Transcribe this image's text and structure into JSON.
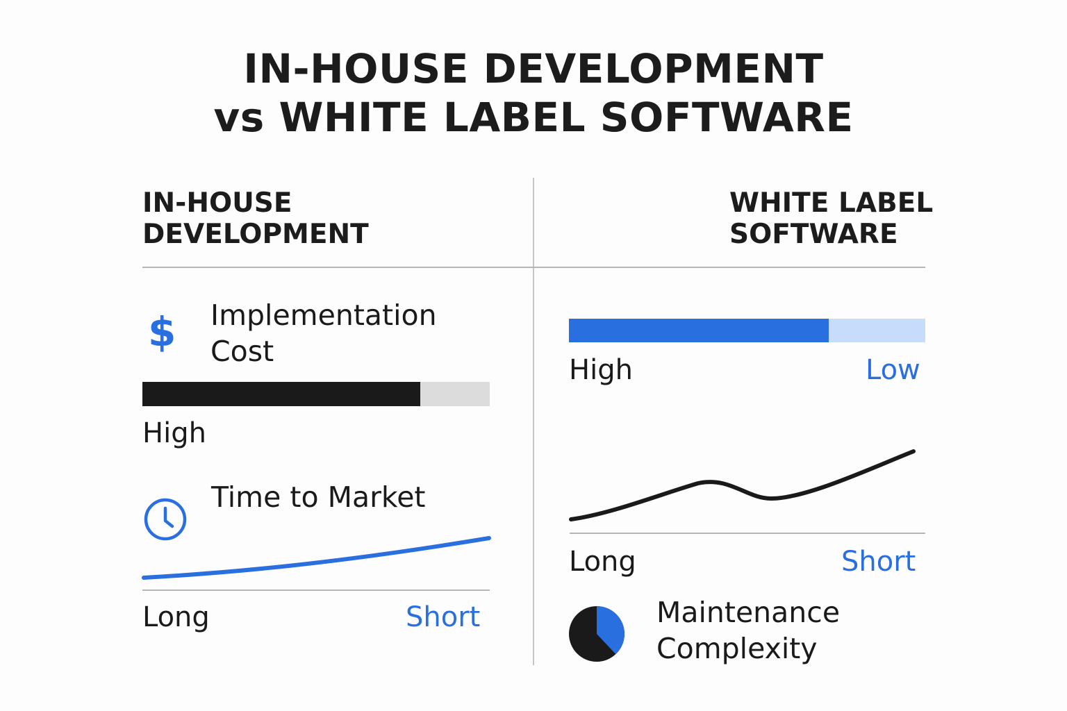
{
  "title": {
    "line1": "IN-HOUSE DEVELOPMENT",
    "line2": "vs WHITE LABEL SOFTWARE"
  },
  "colors": {
    "accent_blue": "#2a6fe0",
    "light_blue": "#c7dcfb",
    "dark": "#1a1a1a",
    "light_gray": "#dcdcdc"
  },
  "left": {
    "heading_line1": "IN-HOUSE",
    "heading_line2": "DEVELOPMENT",
    "cost": {
      "icon": "dollar-icon",
      "icon_glyph": "$",
      "label_line1": "Implementation",
      "label_line2": "Cost",
      "bar_fill_fraction": 0.8,
      "value_label": "High"
    },
    "time": {
      "icon": "clock-icon",
      "label": "Time to Market",
      "axis_left": "Long",
      "axis_right": "Short"
    }
  },
  "right": {
    "heading_line1": "WHITE LABEL",
    "heading_line2": "SOFTWARE",
    "cost": {
      "bar_fill_fraction": 0.73,
      "label_left": "High",
      "label_right": "Low"
    },
    "time": {
      "axis_left": "Long",
      "axis_right": "Short"
    },
    "maintenance": {
      "icon": "pie-chart-icon",
      "label_line1": "Maintenance",
      "label_line2": "Complexity",
      "pie_highlight_fraction": 0.38
    }
  }
}
